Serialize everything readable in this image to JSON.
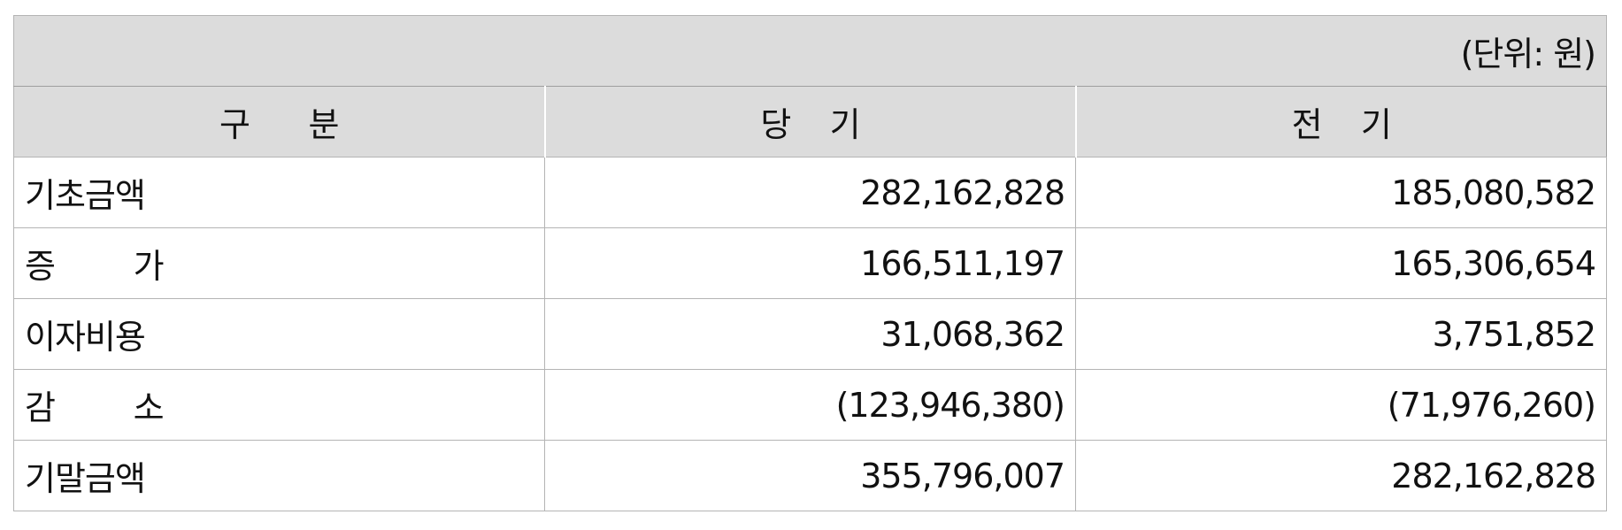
{
  "unit_label": "(단위: 원)",
  "columns": [
    "구      분",
    "당    기",
    "전    기"
  ],
  "rows": [
    {
      "label": "기초금액",
      "current": "282,162,828",
      "prior": "185,080,582"
    },
    {
      "label": "증        가",
      "current": "166,511,197",
      "prior": "165,306,654"
    },
    {
      "label": "이자비용",
      "current": "31,068,362",
      "prior": "3,751,852"
    },
    {
      "label": "감        소",
      "current": "(123,946,380)",
      "prior": "(71,976,260)"
    },
    {
      "label": "기말금액",
      "current": "355,796,007",
      "prior": "282,162,828"
    }
  ]
}
